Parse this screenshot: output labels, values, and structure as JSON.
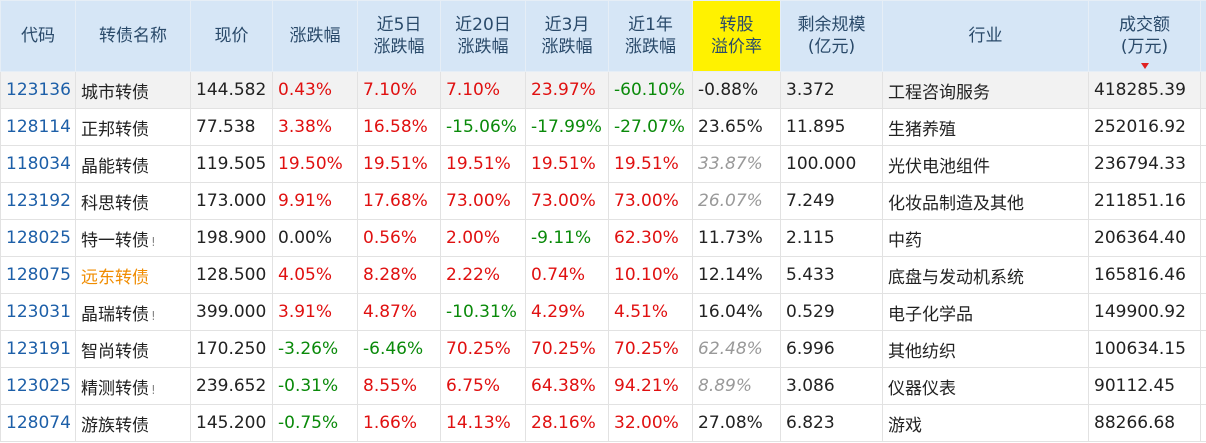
{
  "table": {
    "header": [
      [
        "代码"
      ],
      [
        "转债名称"
      ],
      [
        "现价"
      ],
      [
        "涨跌幅"
      ],
      [
        "近5日",
        "涨跌幅"
      ],
      [
        "近20日",
        "涨跌幅"
      ],
      [
        "近3月",
        "涨跌幅"
      ],
      [
        "近1年",
        "涨跌幅"
      ],
      [
        "转股",
        "溢价率"
      ],
      [
        "剩余规模",
        "(亿元)"
      ],
      [
        "行业"
      ],
      [
        "成交额",
        "(万元)"
      ]
    ],
    "rows": [
      {
        "code": "123136",
        "name": "城市转债",
        "price": "144.582",
        "change": "0.43%",
        "chg5d": "7.10%",
        "chg20d": "7.10%",
        "chg3m": "23.97%",
        "chg1y": "-60.10%",
        "premium": "-0.88%",
        "remaining": "3.372",
        "industry": "工程咨询服务",
        "volume": "418285.39"
      },
      {
        "code": "128114",
        "name": "正邦转债",
        "price": "77.538",
        "change": "3.38%",
        "chg5d": "16.58%",
        "chg20d": "-15.06%",
        "chg3m": "-17.99%",
        "chg1y": "-27.07%",
        "premium": "23.65%",
        "remaining": "11.895",
        "industry": "生猪养殖",
        "volume": "252016.92"
      },
      {
        "code": "118034",
        "name": "晶能转债",
        "price": "119.505",
        "change": "19.50%",
        "chg5d": "19.51%",
        "chg20d": "19.51%",
        "chg3m": "19.51%",
        "chg1y": "19.51%",
        "premium": "33.87%",
        "premium_muted": true,
        "remaining": "100.000",
        "industry": "光伏电池组件",
        "volume": "236794.33"
      },
      {
        "code": "123192",
        "name": "科思转债",
        "price": "173.000",
        "change": "9.91%",
        "chg5d": "17.68%",
        "chg20d": "73.00%",
        "chg3m": "73.00%",
        "chg1y": "73.00%",
        "premium": "26.07%",
        "premium_muted": true,
        "remaining": "7.249",
        "industry": "化妆品制造及其他",
        "volume": "211851.16"
      },
      {
        "code": "128025",
        "name": "特一转债",
        "flag": "!",
        "price": "198.900",
        "change": "0.00%",
        "chg5d": "0.56%",
        "chg20d": "2.00%",
        "chg3m": "-9.11%",
        "chg1y": "62.30%",
        "premium": "11.73%",
        "remaining": "2.115",
        "industry": "中药",
        "volume": "206364.40"
      },
      {
        "code": "128075",
        "name": "远东转债",
        "name_color": "#f08c00",
        "price": "128.500",
        "change": "4.05%",
        "chg5d": "8.28%",
        "chg20d": "2.22%",
        "chg3m": "0.74%",
        "chg1y": "10.10%",
        "premium": "12.14%",
        "remaining": "5.433",
        "industry": "底盘与发动机系统",
        "volume": "165816.46"
      },
      {
        "code": "123031",
        "name": "晶瑞转债",
        "flag": "!",
        "price": "399.000",
        "change": "3.91%",
        "chg5d": "4.87%",
        "chg20d": "-10.31%",
        "chg3m": "4.29%",
        "chg1y": "4.51%",
        "premium": "16.04%",
        "remaining": "0.529",
        "industry": "电子化学品",
        "volume": "149900.92"
      },
      {
        "code": "123191",
        "name": "智尚转债",
        "price": "170.250",
        "change": "-3.26%",
        "chg5d": "-6.46%",
        "chg20d": "70.25%",
        "chg3m": "70.25%",
        "chg1y": "70.25%",
        "premium": "62.48%",
        "premium_muted": true,
        "remaining": "6.996",
        "industry": "其他纺织",
        "volume": "100634.15"
      },
      {
        "code": "123025",
        "name": "精测转债",
        "flag": "!",
        "price": "239.652",
        "change": "-0.31%",
        "chg5d": "8.55%",
        "chg20d": "6.75%",
        "chg3m": "64.38%",
        "chg1y": "94.21%",
        "premium": "8.89%",
        "premium_muted": true,
        "remaining": "3.086",
        "industry": "仪器仪表",
        "volume": "90112.45"
      },
      {
        "code": "128074",
        "name": "游族转债",
        "price": "145.200",
        "change": "-0.75%",
        "chg5d": "1.66%",
        "chg20d": "14.13%",
        "chg3m": "28.16%",
        "chg1y": "32.00%",
        "premium": "27.08%",
        "remaining": "6.823",
        "industry": "游戏",
        "volume": "88266.68"
      }
    ]
  }
}
